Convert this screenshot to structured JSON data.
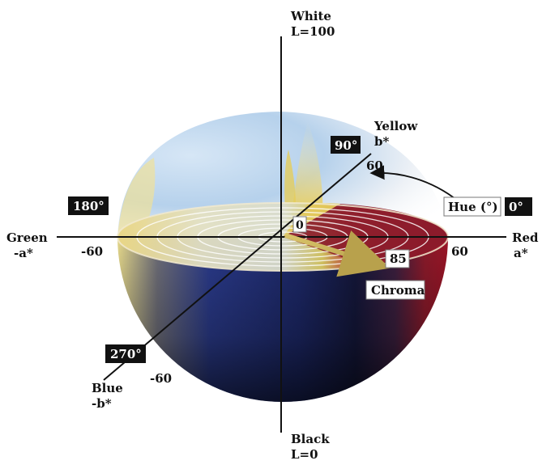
{
  "axes": {
    "lightness_top": "White",
    "lightness_top_sub": "L=100",
    "lightness_bottom": "Black",
    "lightness_bottom_sub": "L=0",
    "red": "Red",
    "red_sub": "a*",
    "green": "Green",
    "green_sub": "-a*",
    "yellow": "Yellow",
    "yellow_sub": "b*",
    "blue": "Blue",
    "blue_sub": "-b*"
  },
  "ticks": {
    "red_pos": "60",
    "green_neg": "-60",
    "yellow_pos": "60",
    "blue_neg": "-60",
    "origin": "0"
  },
  "angles": {
    "deg0": "0°",
    "deg90": "90°",
    "deg180": "180°",
    "deg270": "270°"
  },
  "hue_label": "Hue (°)",
  "chroma_label": "Chroma",
  "chroma_value": "85",
  "colors": {
    "red": "#8a1a2a",
    "yellow": "#e8d98a",
    "blue": "#1e2f7a",
    "light_blue": "#bcd6ee",
    "dark": "#0e1022"
  }
}
